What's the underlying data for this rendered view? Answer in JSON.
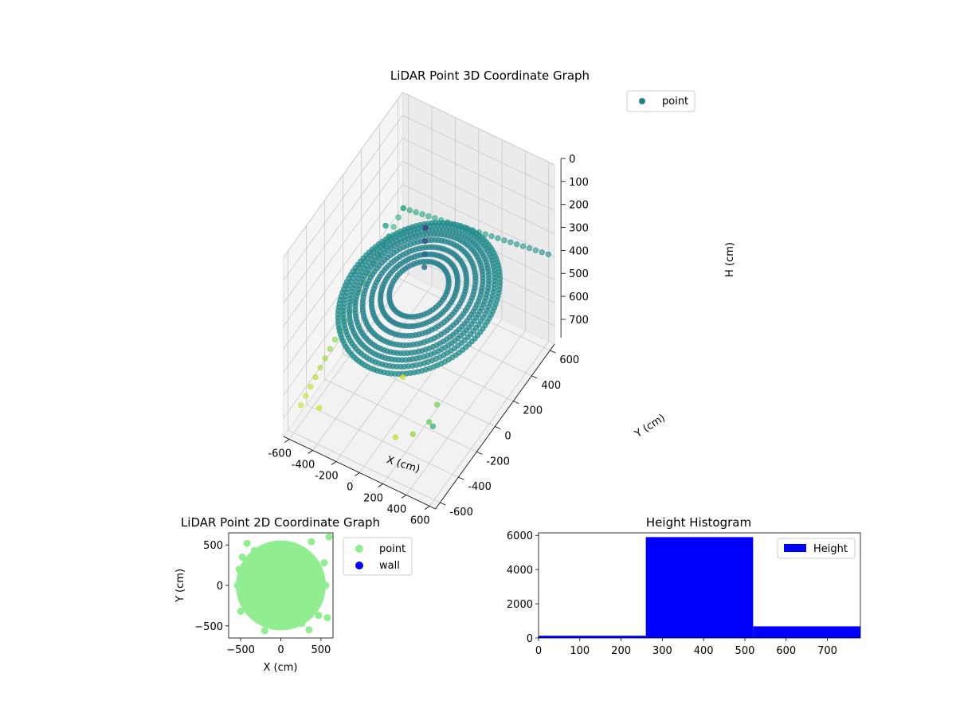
{
  "chart_data": [
    {
      "type": "scatter",
      "projection": "3d",
      "title": "LiDAR Point 3D Coordinate Graph",
      "xlabel": "X (cm)",
      "ylabel": "Y (cm)",
      "zlabel": "H (cm)",
      "xlim": [
        -650,
        650
      ],
      "ylim": [
        -650,
        650
      ],
      "zlim": [
        780,
        0
      ],
      "z_axis_inverted": true,
      "xticks": [
        -600,
        -400,
        -200,
        0,
        200,
        400,
        600
      ],
      "yticks": [
        -600,
        -400,
        -200,
        0,
        200,
        400,
        600
      ],
      "zticks": [
        0,
        100,
        200,
        300,
        400,
        500,
        600,
        700
      ],
      "grid": true,
      "colormap": "viridis",
      "color_by": "height",
      "legend": {
        "position": "top-right",
        "entries": [
          {
            "label": "point",
            "color": "#21818c"
          }
        ]
      },
      "series": [
        {
          "name": "point",
          "rings": [
            {
              "radius": 200,
              "h": 340,
              "count": 60
            },
            {
              "radius": 260,
              "h": 345,
              "count": 80
            },
            {
              "radius": 320,
              "h": 350,
              "count": 90
            },
            {
              "radius": 380,
              "h": 355,
              "count": 100
            },
            {
              "radius": 430,
              "h": 360,
              "count": 110
            },
            {
              "radius": 470,
              "h": 365,
              "count": 120
            },
            {
              "radius": 510,
              "h": 370,
              "count": 120
            },
            {
              "radius": 545,
              "h": 380,
              "count": 130
            }
          ],
          "wall_band": {
            "x_start": -620,
            "x_end": 620,
            "y": 620,
            "h_start": 480,
            "h_end": 380,
            "count": 24
          },
          "wall_band_left": {
            "x": -620,
            "y_start": 620,
            "y_end": -500,
            "h_start": 480,
            "h_end": 720,
            "count": 22
          },
          "tower": [
            [
              -40,
              120,
              150
            ],
            [
              -35,
              110,
              200
            ],
            [
              -30,
              100,
              250
            ],
            [
              -25,
              90,
              300
            ]
          ],
          "outliers": [
            [
              -100,
              -50,
              720
            ],
            [
              150,
              -450,
              700
            ],
            [
              300,
              -450,
              650
            ],
            [
              350,
              -250,
              620
            ],
            [
              400,
              -400,
              600
            ],
            [
              -500,
              -450,
              730
            ],
            [
              550,
              -550,
              500
            ],
            [
              -600,
              400,
              430
            ]
          ]
        }
      ]
    },
    {
      "type": "scatter",
      "title": "LiDAR Point 2D Coordinate Graph",
      "xlabel": "X (cm)",
      "ylabel": "Y (cm)",
      "xlim": [
        -650,
        650
      ],
      "ylim": [
        -650,
        650
      ],
      "xticks": [
        -500,
        0,
        500
      ],
      "yticks": [
        -500,
        0,
        500
      ],
      "legend": {
        "position": "outside-right",
        "entries": [
          {
            "label": "point",
            "color": "#90ee90"
          },
          {
            "label": "wall",
            "color": "#0000ff"
          }
        ]
      },
      "series": [
        {
          "name": "point",
          "color": "#90ee90",
          "shape": "filled-disc",
          "radius": 560,
          "outliers": [
            [
              -480,
              350
            ],
            [
              -520,
              200
            ],
            [
              -540,
              0
            ],
            [
              -500,
              -320
            ],
            [
              -420,
              520
            ],
            [
              380,
              540
            ],
            [
              600,
              600
            ],
            [
              540,
              280
            ],
            [
              560,
              0
            ],
            [
              470,
              -370
            ],
            [
              580,
              -400
            ],
            [
              -200,
              -560
            ],
            [
              350,
              -550
            ],
            [
              -330,
              430
            ],
            [
              260,
              -470
            ]
          ]
        },
        {
          "name": "wall",
          "color": "#0000ff",
          "x": [],
          "y": []
        }
      ]
    },
    {
      "type": "bar",
      "subtype": "histogram",
      "title": "Height Histogram",
      "xlim": [
        0,
        780
      ],
      "ylim": [
        0,
        6150
      ],
      "xticks": [
        0,
        100,
        200,
        300,
        400,
        500,
        600,
        700
      ],
      "yticks": [
        0,
        2000,
        4000,
        6000
      ],
      "bin_edges": [
        0,
        260,
        520,
        780
      ],
      "values": [
        130,
        5900,
        680
      ],
      "color": "#0000ff",
      "legend": {
        "position": "top-right",
        "entries": [
          {
            "label": "Height",
            "color": "#0000ff"
          }
        ]
      }
    }
  ]
}
